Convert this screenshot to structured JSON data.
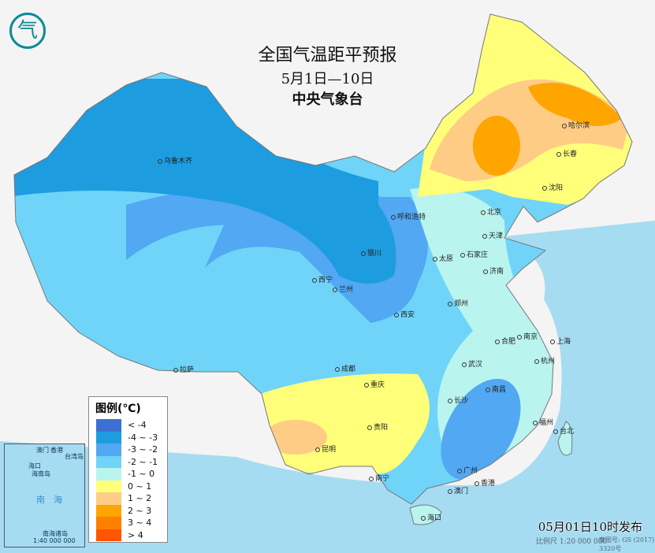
{
  "header": {
    "title": "全国气温距平预报",
    "period": "5月1日—10日",
    "issuer": "中央气象台"
  },
  "legend": {
    "title": "图例(℃)",
    "items": [
      {
        "label": "< -4",
        "color": "#3c6fd2"
      },
      {
        "label": "-4 ~ -3",
        "color": "#1d9de0"
      },
      {
        "label": "-3 ~ -2",
        "color": "#52a8f2"
      },
      {
        "label": "-2 ~ -1",
        "color": "#6fd4f8"
      },
      {
        "label": "-1 ~ 0",
        "color": "#b9f4ee"
      },
      {
        "label": "0 ~ 1",
        "color": "#ffff7a"
      },
      {
        "label": "1 ~ 2",
        "color": "#ffcc85"
      },
      {
        "label": "2 ~ 3",
        "color": "#ffa500"
      },
      {
        "label": "3 ~ 4",
        "color": "#ff8000"
      },
      {
        "label": "> 4",
        "color": "#ff5500"
      }
    ]
  },
  "cities": [
    "乌鲁木齐",
    "呼和浩特",
    "北京",
    "天津",
    "哈尔滨",
    "长春",
    "沈阳",
    "银川",
    "太原",
    "石家庄",
    "济南",
    "西宁",
    "兰州",
    "西安",
    "郑州",
    "合肥",
    "南京",
    "上海",
    "杭州",
    "武汉",
    "拉萨",
    "成都",
    "重庆",
    "长沙",
    "南昌",
    "贵阳",
    "昆明",
    "福州",
    "台北",
    "南宁",
    "广州",
    "香港",
    "澳门",
    "海口"
  ],
  "inset": {
    "labels": [
      "澳门",
      "香港",
      "台湾岛",
      "海口",
      "海南岛",
      "南",
      "海",
      "南海诸岛"
    ],
    "scale": "1:40 000 000"
  },
  "footer": {
    "issued": "05月01日10时发布",
    "scale": "比例尺 1:20 000 000",
    "approval": "审图号: GS (2017) 3320号"
  },
  "logo": "气"
}
